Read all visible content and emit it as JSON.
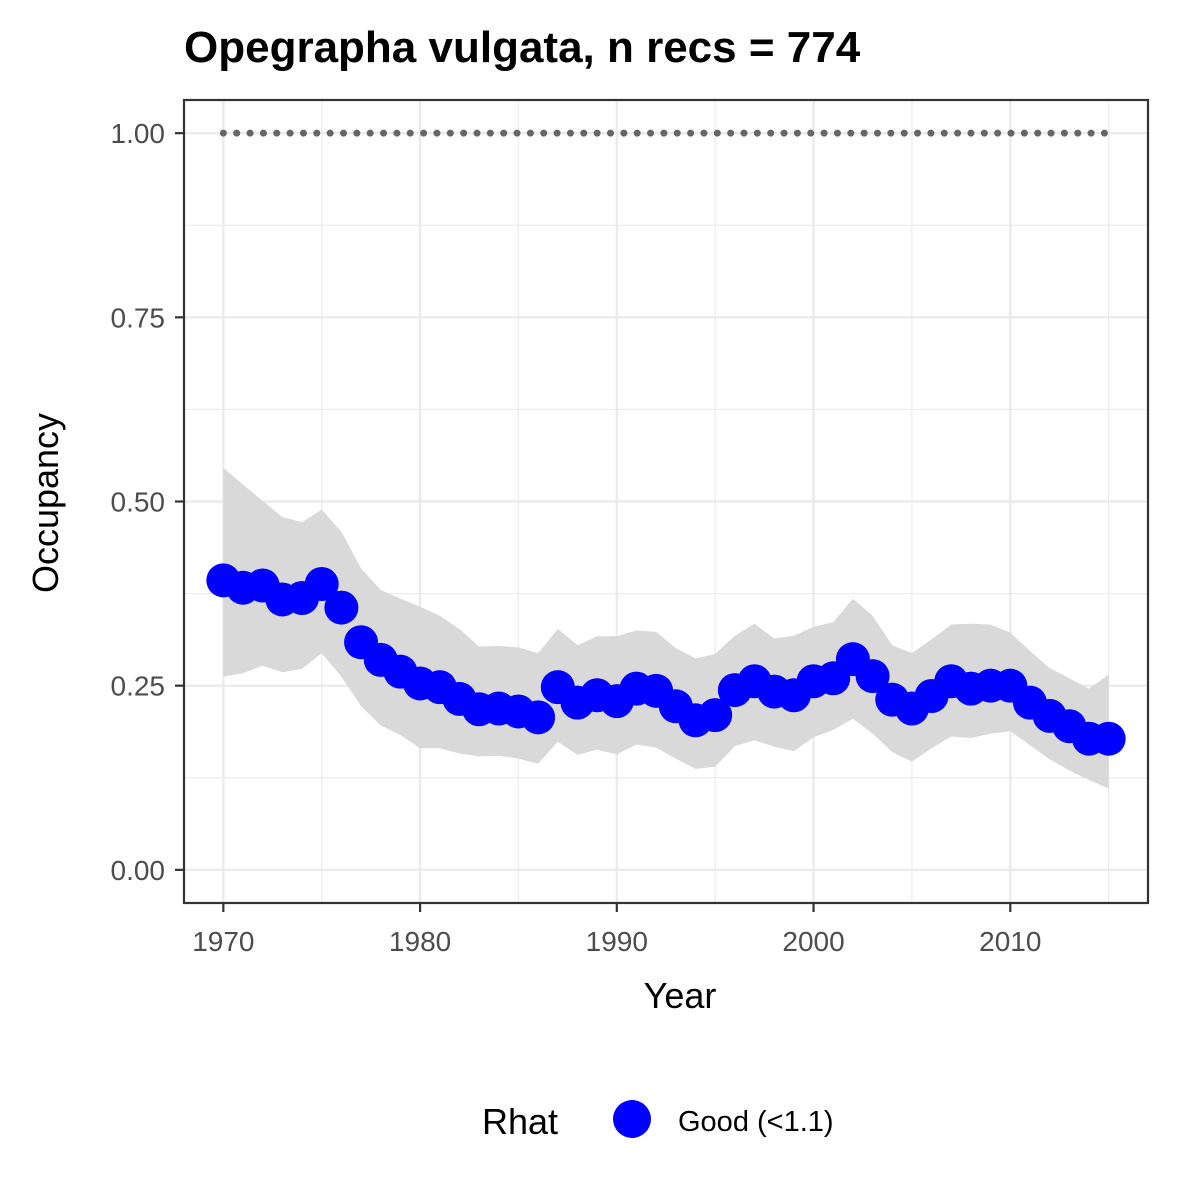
{
  "chart_data": {
    "type": "line",
    "title": "Opegrapha vulgata, n recs = 774",
    "xlabel": "Year",
    "ylabel": "Occupancy",
    "xlim": [
      1968,
      2017
    ],
    "ylim": [
      -0.045,
      1.045
    ],
    "x_ticks": [
      1970,
      1980,
      1990,
      2000,
      2010
    ],
    "x_tick_labels": [
      "1970",
      "1980",
      "1990",
      "2000",
      "2010"
    ],
    "y_ticks": [
      0,
      0.25,
      0.5,
      0.75,
      1.0
    ],
    "y_tick_labels": [
      "0.00",
      "0.25",
      "0.50",
      "0.75",
      "1.00"
    ],
    "grid": true,
    "legend_position": "bottom",
    "legend_title": "Rhat",
    "x": [
      1970,
      1971,
      1972,
      1973,
      1974,
      1975,
      1976,
      1977,
      1978,
      1979,
      1980,
      1981,
      1982,
      1983,
      1984,
      1985,
      1986,
      1987,
      1988,
      1989,
      1990,
      1991,
      1992,
      1993,
      1994,
      1995,
      1996,
      1997,
      1998,
      1999,
      2000,
      2001,
      2002,
      2003,
      2004,
      2005,
      2006,
      2007,
      2008,
      2009,
      2010,
      2011,
      2012,
      2013,
      2014,
      2015
    ],
    "series": [
      {
        "name": "Good (<1.1)",
        "color": "#0000ff",
        "marker": "circle",
        "values": [
          0.393,
          0.383,
          0.386,
          0.367,
          0.369,
          0.388,
          0.356,
          0.309,
          0.285,
          0.269,
          0.253,
          0.248,
          0.232,
          0.218,
          0.219,
          0.215,
          0.207,
          0.248,
          0.227,
          0.237,
          0.229,
          0.246,
          0.243,
          0.222,
          0.203,
          0.21,
          0.244,
          0.256,
          0.242,
          0.237,
          0.256,
          0.26,
          0.286,
          0.263,
          0.231,
          0.219,
          0.236,
          0.256,
          0.246,
          0.25,
          0.25,
          0.227,
          0.209,
          0.195,
          0.178,
          0.178
        ]
      }
    ],
    "ci_band": {
      "color": "#d9d9d9",
      "lower": [
        0.262,
        0.267,
        0.277,
        0.268,
        0.273,
        0.294,
        0.262,
        0.222,
        0.196,
        0.183,
        0.165,
        0.165,
        0.158,
        0.154,
        0.155,
        0.151,
        0.144,
        0.174,
        0.156,
        0.163,
        0.157,
        0.17,
        0.166,
        0.151,
        0.137,
        0.14,
        0.168,
        0.176,
        0.167,
        0.161,
        0.18,
        0.19,
        0.205,
        0.185,
        0.16,
        0.147,
        0.165,
        0.181,
        0.179,
        0.185,
        0.188,
        0.169,
        0.15,
        0.135,
        0.122,
        0.11
      ],
      "upper": [
        0.546,
        0.523,
        0.501,
        0.479,
        0.472,
        0.489,
        0.459,
        0.409,
        0.38,
        0.368,
        0.357,
        0.345,
        0.327,
        0.303,
        0.304,
        0.302,
        0.294,
        0.327,
        0.305,
        0.317,
        0.317,
        0.325,
        0.323,
        0.301,
        0.287,
        0.293,
        0.318,
        0.334,
        0.314,
        0.318,
        0.33,
        0.336,
        0.368,
        0.345,
        0.305,
        0.294,
        0.313,
        0.333,
        0.334,
        0.333,
        0.322,
        0.297,
        0.274,
        0.26,
        0.246,
        0.265
      ]
    },
    "reference_line": {
      "y": 1.0,
      "color": "#666666",
      "style": "dotted"
    }
  }
}
